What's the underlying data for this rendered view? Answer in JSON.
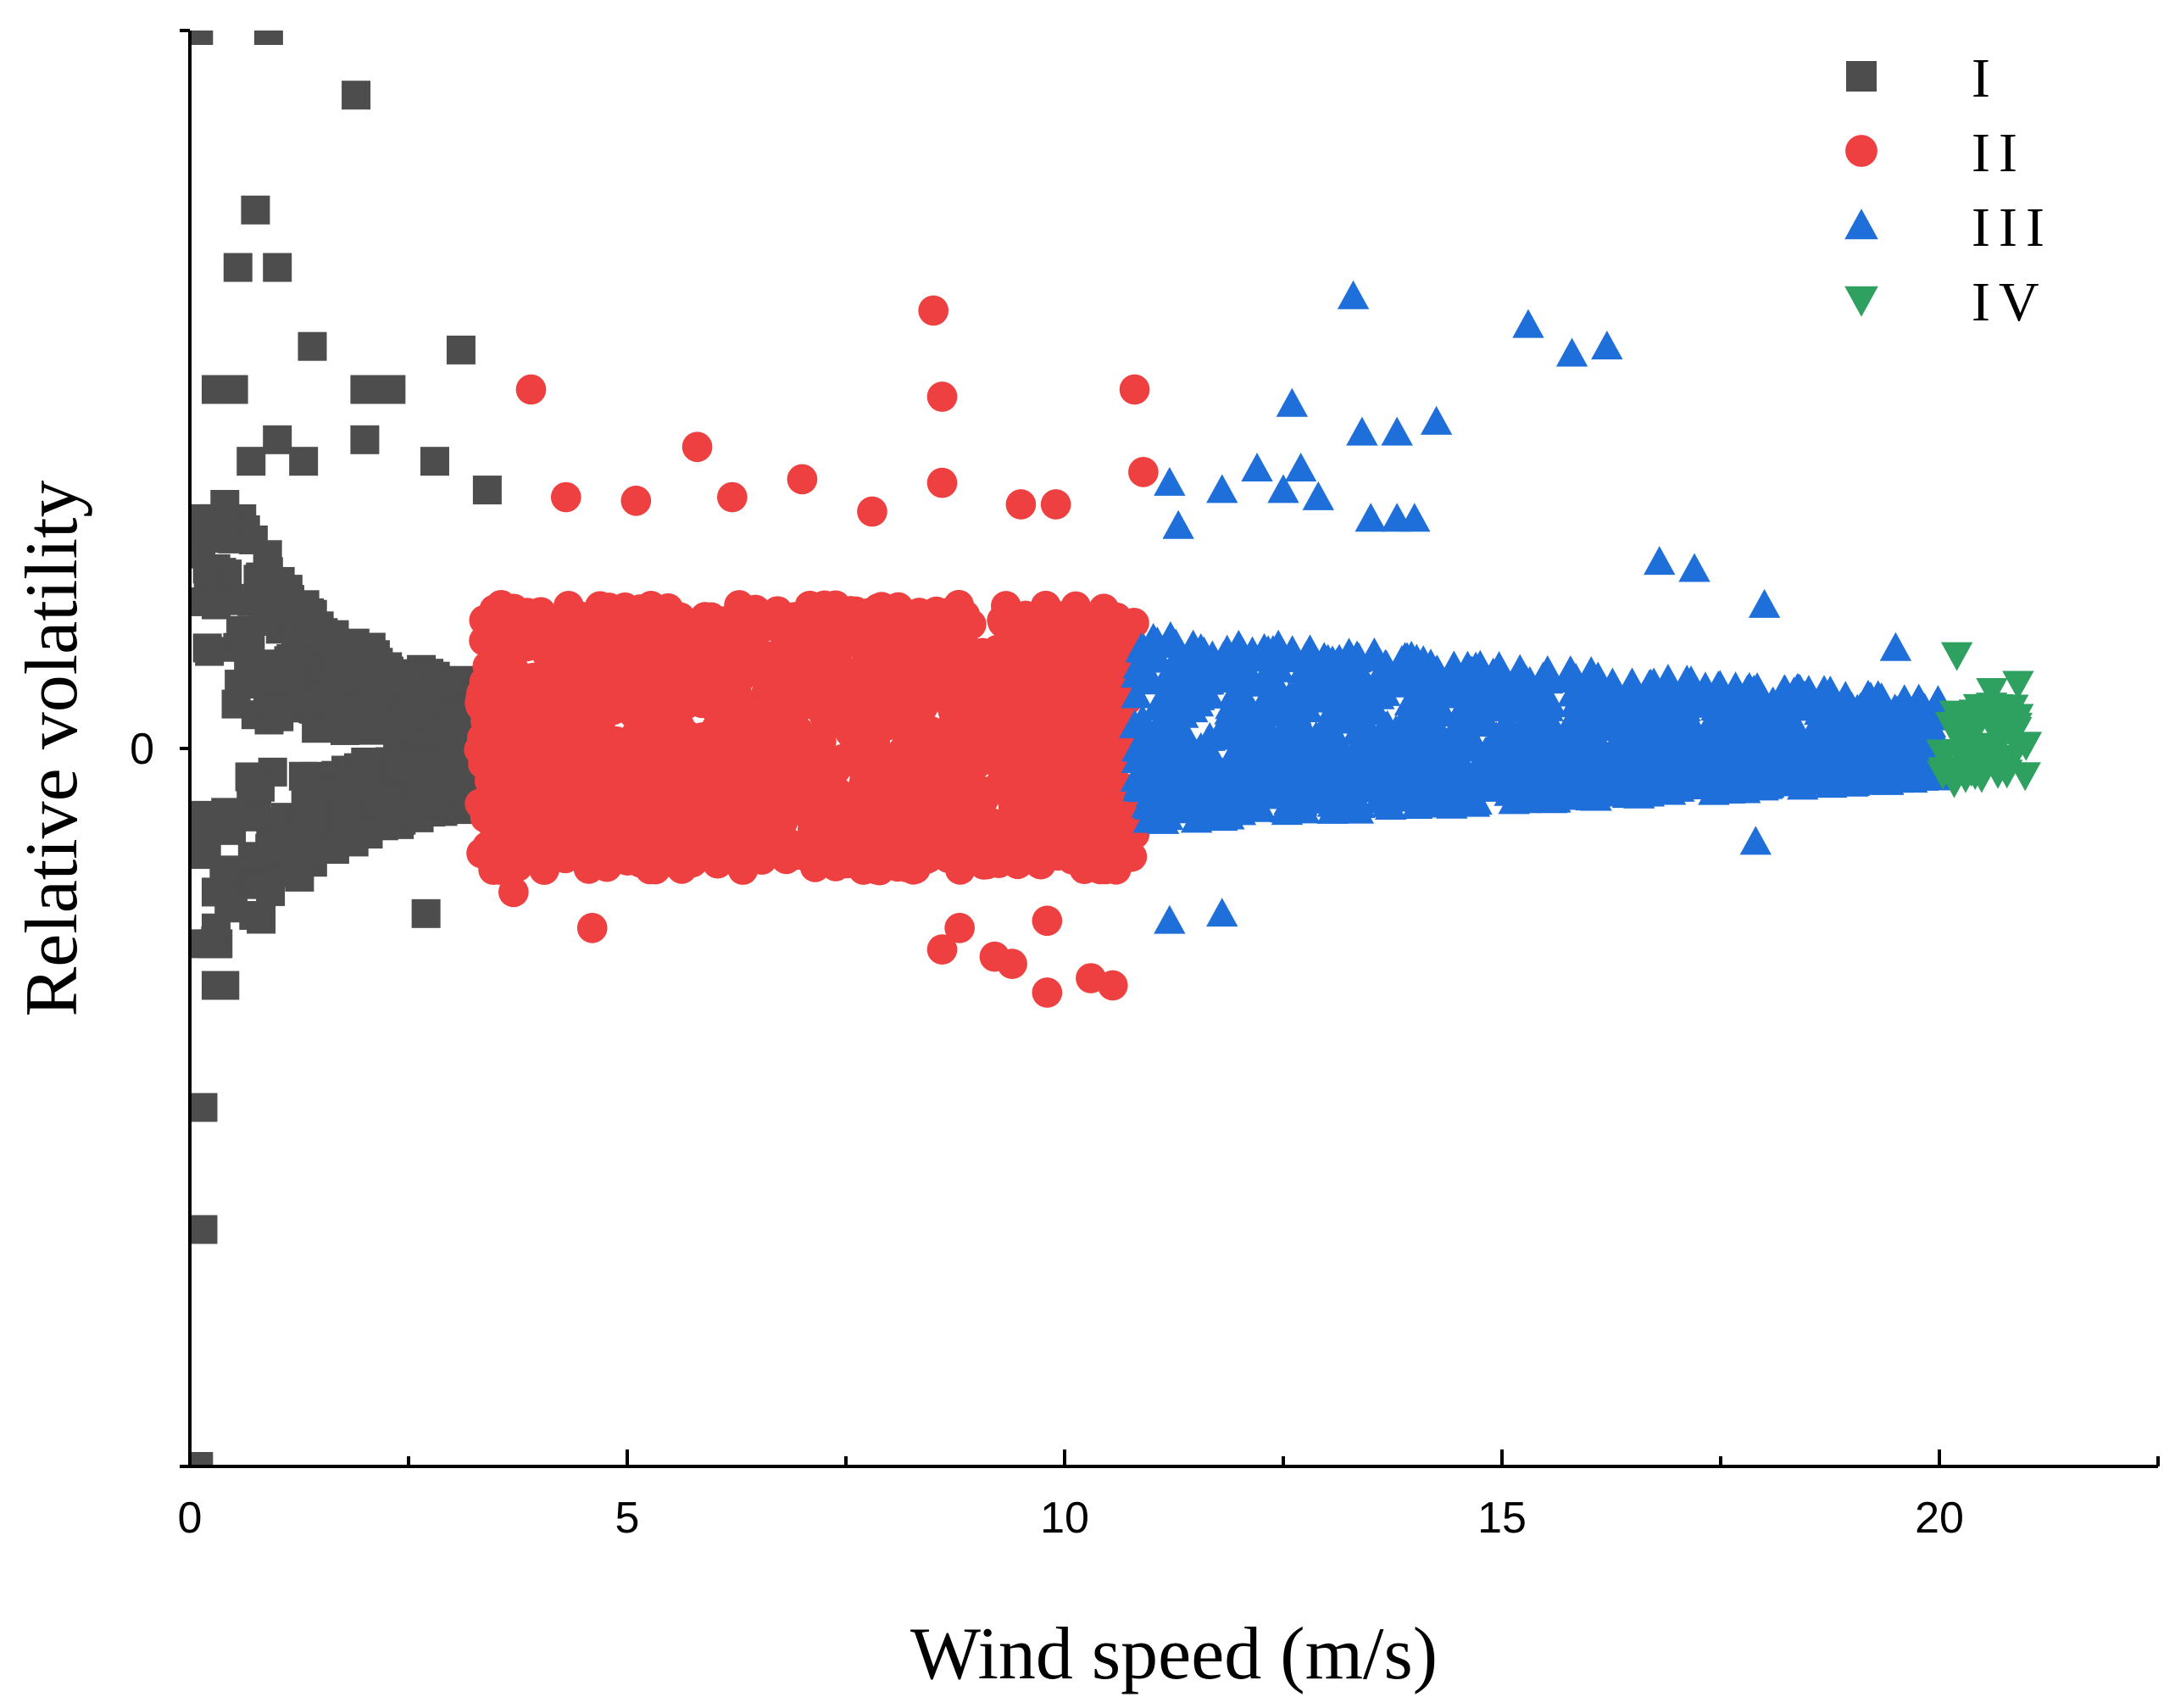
{
  "chart_data": {
    "type": "scatter",
    "title": "",
    "xlabel": "Wind speed (m/s)",
    "ylabel": "Relative volatility",
    "xlim": [
      0,
      22.5
    ],
    "ylim": [
      -1,
      1
    ],
    "x_ticks": [
      0,
      5,
      10,
      15,
      20
    ],
    "x_tick_labels": [
      "0",
      "5",
      "10",
      "15",
      "20"
    ],
    "y_tick_labels": [
      {
        "value": 0,
        "label": "0"
      }
    ],
    "grid": false,
    "legend": {
      "position": "top-right"
    },
    "series": [
      {
        "name": "I",
        "marker": "square",
        "color": "#4d4d4d",
        "x_range": [
          0,
          3.3
        ],
        "band": "dense cluster of curved bands around 0",
        "outliers": [
          [
            0.1,
            1.0
          ],
          [
            0.9,
            1.0
          ],
          [
            1.9,
            0.91
          ],
          [
            0.75,
            0.75
          ],
          [
            0.55,
            0.67
          ],
          [
            1.0,
            0.67
          ],
          [
            1.4,
            0.56
          ],
          [
            3.1,
            0.555
          ],
          [
            0.3,
            0.5
          ],
          [
            0.5,
            0.5
          ],
          [
            2.0,
            0.5
          ],
          [
            2.3,
            0.5
          ],
          [
            1.0,
            0.43
          ],
          [
            0.7,
            0.4
          ],
          [
            1.3,
            0.4
          ],
          [
            2.0,
            0.43
          ],
          [
            2.8,
            0.4
          ],
          [
            0.4,
            0.34
          ],
          [
            3.4,
            0.36
          ],
          [
            0.2,
            0.25
          ],
          [
            0.3,
            0.2
          ],
          [
            0.2,
            0.14
          ],
          [
            0.3,
            -0.2
          ],
          [
            2.7,
            -0.23
          ],
          [
            0.3,
            -0.25
          ],
          [
            0.3,
            -0.33
          ],
          [
            0.4,
            -0.33
          ],
          [
            0.15,
            -0.5
          ],
          [
            0.15,
            -0.67
          ],
          [
            0.1,
            -1.0
          ]
        ]
      },
      {
        "name": "II",
        "marker": "circle",
        "color": "#ee4040",
        "x_range": [
          3.3,
          10.8
        ],
        "band": "dense cluster around 0",
        "outliers": [
          [
            8.5,
            0.61
          ],
          [
            3.9,
            0.5
          ],
          [
            8.6,
            0.49
          ],
          [
            10.8,
            0.5
          ],
          [
            5.8,
            0.42
          ],
          [
            10.9,
            0.385
          ],
          [
            7.0,
            0.375
          ],
          [
            8.6,
            0.37
          ],
          [
            4.3,
            0.35
          ],
          [
            5.1,
            0.345
          ],
          [
            6.2,
            0.35
          ],
          [
            7.8,
            0.33
          ],
          [
            9.5,
            0.34
          ],
          [
            9.9,
            0.34
          ],
          [
            3.7,
            -0.2
          ],
          [
            4.6,
            -0.25
          ],
          [
            8.8,
            -0.25
          ],
          [
            9.8,
            -0.24
          ],
          [
            8.6,
            -0.28
          ],
          [
            9.4,
            -0.3
          ],
          [
            9.2,
            -0.29
          ],
          [
            10.3,
            -0.32
          ],
          [
            10.55,
            -0.33
          ],
          [
            9.8,
            -0.34
          ]
        ]
      },
      {
        "name": "III",
        "marker": "triangle-up",
        "color": "#1f6fdb",
        "x_range": [
          10.8,
          20.0
        ],
        "band": "dense tapering cluster around 0",
        "outliers": [
          [
            13.3,
            0.63
          ],
          [
            15.3,
            0.59
          ],
          [
            15.8,
            0.55
          ],
          [
            16.2,
            0.56
          ],
          [
            12.6,
            0.48
          ],
          [
            13.4,
            0.44
          ],
          [
            13.8,
            0.44
          ],
          [
            14.25,
            0.455
          ],
          [
            12.2,
            0.39
          ],
          [
            12.7,
            0.39
          ],
          [
            11.2,
            0.37
          ],
          [
            11.8,
            0.36
          ],
          [
            12.5,
            0.36
          ],
          [
            12.9,
            0.35
          ],
          [
            11.3,
            0.31
          ],
          [
            13.5,
            0.32
          ],
          [
            13.8,
            0.32
          ],
          [
            14.0,
            0.32
          ],
          [
            16.8,
            0.26
          ],
          [
            17.2,
            0.25
          ],
          [
            18.0,
            0.2
          ],
          [
            19.5,
            0.14
          ],
          [
            11.2,
            -0.24
          ],
          [
            11.8,
            -0.23
          ],
          [
            17.9,
            -0.13
          ]
        ]
      },
      {
        "name": "IV",
        "marker": "triangle-down",
        "color": "#2ea060",
        "x_range": [
          20.0,
          21.0
        ],
        "band": "small cluster around 0",
        "outliers": [
          [
            20.2,
            0.13
          ],
          [
            20.9,
            0.09
          ],
          [
            20.6,
            0.08
          ],
          [
            20.4,
            0.05
          ],
          [
            20.1,
            -0.03
          ],
          [
            20.3,
            -0.04
          ],
          [
            20.8,
            -0.02
          ],
          [
            20.7,
            0.01
          ]
        ]
      }
    ]
  }
}
